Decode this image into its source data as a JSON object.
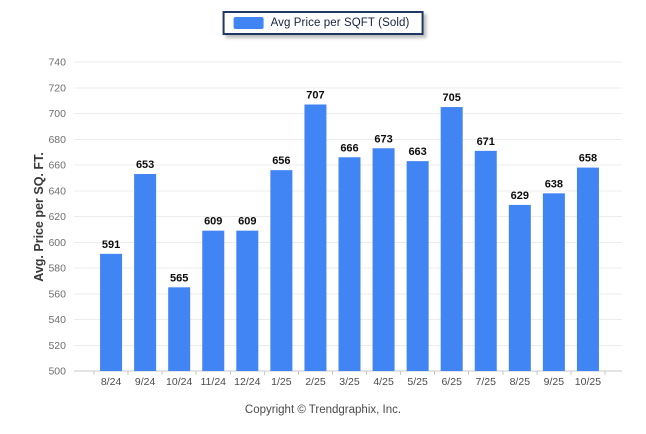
{
  "chart_data": {
    "type": "bar",
    "title": "",
    "legend": "Avg Price per SQFT (Sold)",
    "xlabel": "",
    "ylabel": "Avg. Price per SQ. FT.",
    "categories": [
      "8/24",
      "9/24",
      "10/24",
      "11/24",
      "12/24",
      "1/25",
      "2/25",
      "3/25",
      "4/25",
      "5/25",
      "6/25",
      "7/25",
      "8/25",
      "9/25",
      "10/25"
    ],
    "values": [
      591,
      653,
      565,
      609,
      609,
      656,
      707,
      666,
      673,
      663,
      705,
      671,
      629,
      638,
      658
    ],
    "ylim": [
      500,
      740
    ],
    "ytick_step": 20,
    "grid": true,
    "legend_position": "top-center"
  },
  "footer": {
    "copyright": "Copyright © Trendgraphix, Inc."
  },
  "colors": {
    "bar": "#4184f3",
    "legend_border": "#203864",
    "grid": "#ececec",
    "axis_line": "#c8c8c8",
    "tick_label": "#6e6e6e",
    "x_label": "#4b4b4b",
    "value_label": "#0d0d0d"
  }
}
